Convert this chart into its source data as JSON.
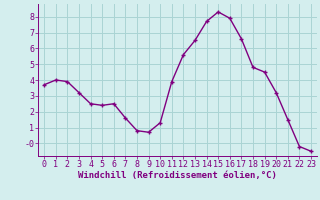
{
  "x": [
    0,
    1,
    2,
    3,
    4,
    5,
    6,
    7,
    8,
    9,
    10,
    11,
    12,
    13,
    14,
    15,
    16,
    17,
    18,
    19,
    20,
    21,
    22,
    23
  ],
  "y": [
    3.7,
    4.0,
    3.9,
    3.2,
    2.5,
    2.4,
    2.5,
    1.6,
    0.8,
    0.7,
    1.3,
    3.9,
    5.6,
    6.5,
    7.7,
    8.3,
    7.9,
    6.6,
    4.8,
    4.5,
    3.2,
    1.5,
    -0.2,
    -0.5
  ],
  "line_color": "#800080",
  "marker": "+",
  "marker_size": 3,
  "marker_color": "#800080",
  "bg_color": "#d4eeee",
  "grid_color": "#aad4d4",
  "xlabel": "Windchill (Refroidissement éolien,°C)",
  "xlabel_color": "#800080",
  "xlabel_fontsize": 6.5,
  "ytick_labels": [
    "-0",
    "1",
    "2",
    "3",
    "4",
    "5",
    "6",
    "7",
    "8"
  ],
  "ytick_vals": [
    0,
    1,
    2,
    3,
    4,
    5,
    6,
    7,
    8
  ],
  "ylim": [
    -0.8,
    8.8
  ],
  "xlim": [
    -0.5,
    23.5
  ],
  "tick_fontsize": 6.0,
  "line_width": 1.0
}
